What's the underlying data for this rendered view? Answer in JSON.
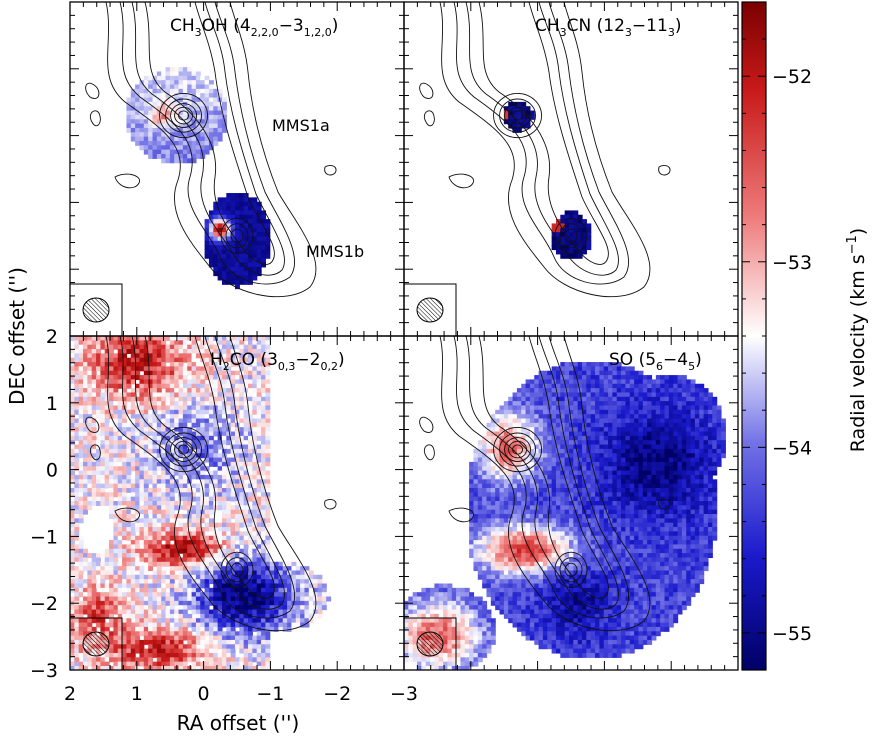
{
  "chart_data": {
    "type": "heatmap",
    "description_type": "velocity (moment-1) maps with contour overlays, 2x2 panels",
    "panels": [
      {
        "id": "ch3oh",
        "label_html": "CH<tspan baseline-shift='sub' font-size='11'>3</tspan>OH (4<tspan baseline-shift='sub' font-size='11'>2,2,0</tspan>−3<tspan baseline-shift='sub' font-size='11'>1,2,0</tspan>)",
        "label_text": "CH3OH (4_{2,2,0}-3_{1,2,0})",
        "sources": [
          "MMS1a",
          "MMS1b"
        ]
      },
      {
        "id": "ch3cn",
        "label_text": "CH3CN (12_3-11_3)"
      },
      {
        "id": "h2co",
        "label_text": "H2CO (3_{0,3}-2_{0,2})"
      },
      {
        "id": "so",
        "label_text": "SO (5_6-4_5)"
      }
    ],
    "panel_labels": {
      "ch3oh": {
        "main": "CH",
        "s1": "3",
        "mid": "OH (4",
        "s2": "2,2,0",
        "dash": "−3",
        "s3": "1,2,0",
        "end": ")"
      },
      "ch3cn": {
        "main": "CH",
        "s1": "3",
        "mid": "CN (12",
        "s2": "3",
        "dash": "−11",
        "s3": "3",
        "end": ")"
      },
      "h2co": {
        "main": "H",
        "s1": "2",
        "mid": "CO (3",
        "s2": "0,3",
        "dash": "−2",
        "s3": "0,2",
        "end": ")"
      },
      "so": {
        "main": "SO (5",
        "s1": "6",
        "mid": "−4",
        "s2": "5",
        "end": ")"
      }
    },
    "source_labels": [
      "MMS1a",
      "MMS1b"
    ],
    "xlabel": "RA offset ('')",
    "ylabel": "DEC offset ('')",
    "xlim": [
      2,
      -3
    ],
    "ylim": [
      -3,
      2
    ],
    "xticks": [
      2,
      1,
      0,
      -1,
      -2,
      -3
    ],
    "xtick_labels": [
      "2",
      "1",
      "0",
      "−1",
      "−2",
      "−3"
    ],
    "yticks": [
      2,
      1,
      0,
      -1,
      -2,
      -3
    ],
    "ytick_labels": [
      "2",
      "1",
      "0",
      "−1",
      "−2",
      "−3"
    ],
    "colorbar": {
      "label": "Radial velocity (km s",
      "label_sup": "−1",
      "label_end": ")",
      "range": [
        -55.2,
        -51.6
      ],
      "ticks": [
        -52,
        -53,
        -54,
        -55
      ],
      "tick_labels": [
        "−52",
        "−53",
        "−54",
        "−55"
      ],
      "colors": [
        "#7b0000",
        "#c81919",
        "#ee7a7a",
        "#ffffff",
        "#7272e6",
        "#1a1acc",
        "#000066"
      ]
    },
    "velocity_peaks": {
      "MMS1a": {
        "ra": 0.3,
        "dec": 0.3
      },
      "MMS1b": {
        "ra": -0.5,
        "dec": -1.5
      }
    }
  }
}
